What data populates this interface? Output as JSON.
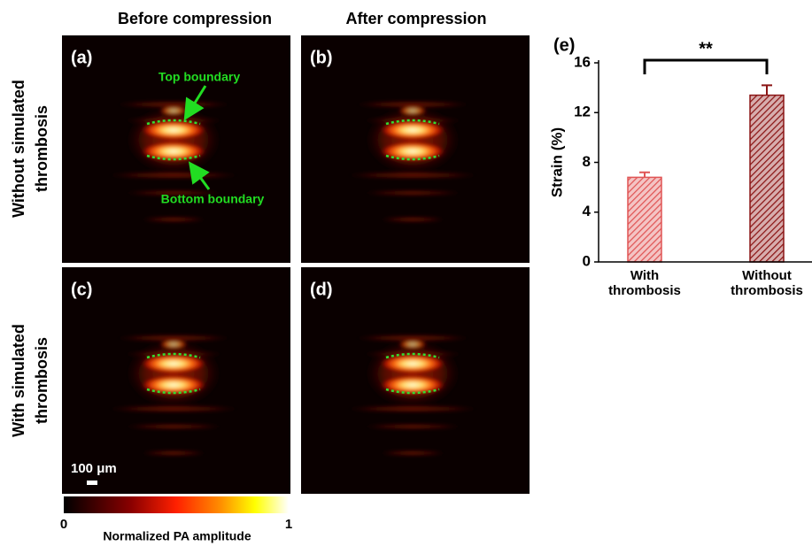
{
  "column_titles": [
    "Before compression",
    "After compression"
  ],
  "row_titles": [
    [
      "Without simulated",
      "thrombosis"
    ],
    [
      "With simulated",
      "thrombosis"
    ]
  ],
  "panels": [
    "(a)",
    "(b)",
    "(c)",
    "(d)"
  ],
  "annotations": {
    "top": "Top boundary",
    "bottom": "Bottom boundary"
  },
  "scale_bar": "100 μm",
  "colorbar": {
    "min": "0",
    "max": "1",
    "label": "Normalized PA amplitude"
  },
  "chart_data": {
    "type": "bar",
    "panel_label": "(e)",
    "ylabel": "Strain (%)",
    "categories": [
      "With thrombosis",
      "Without thrombosis"
    ],
    "values": [
      6.8,
      13.4
    ],
    "errors": [
      0.4,
      0.8
    ],
    "colors": [
      "#e05555",
      "#8b1515"
    ],
    "ylim": [
      0,
      16
    ],
    "yticks": [
      0,
      4,
      8,
      12,
      16
    ],
    "significance": "**"
  }
}
